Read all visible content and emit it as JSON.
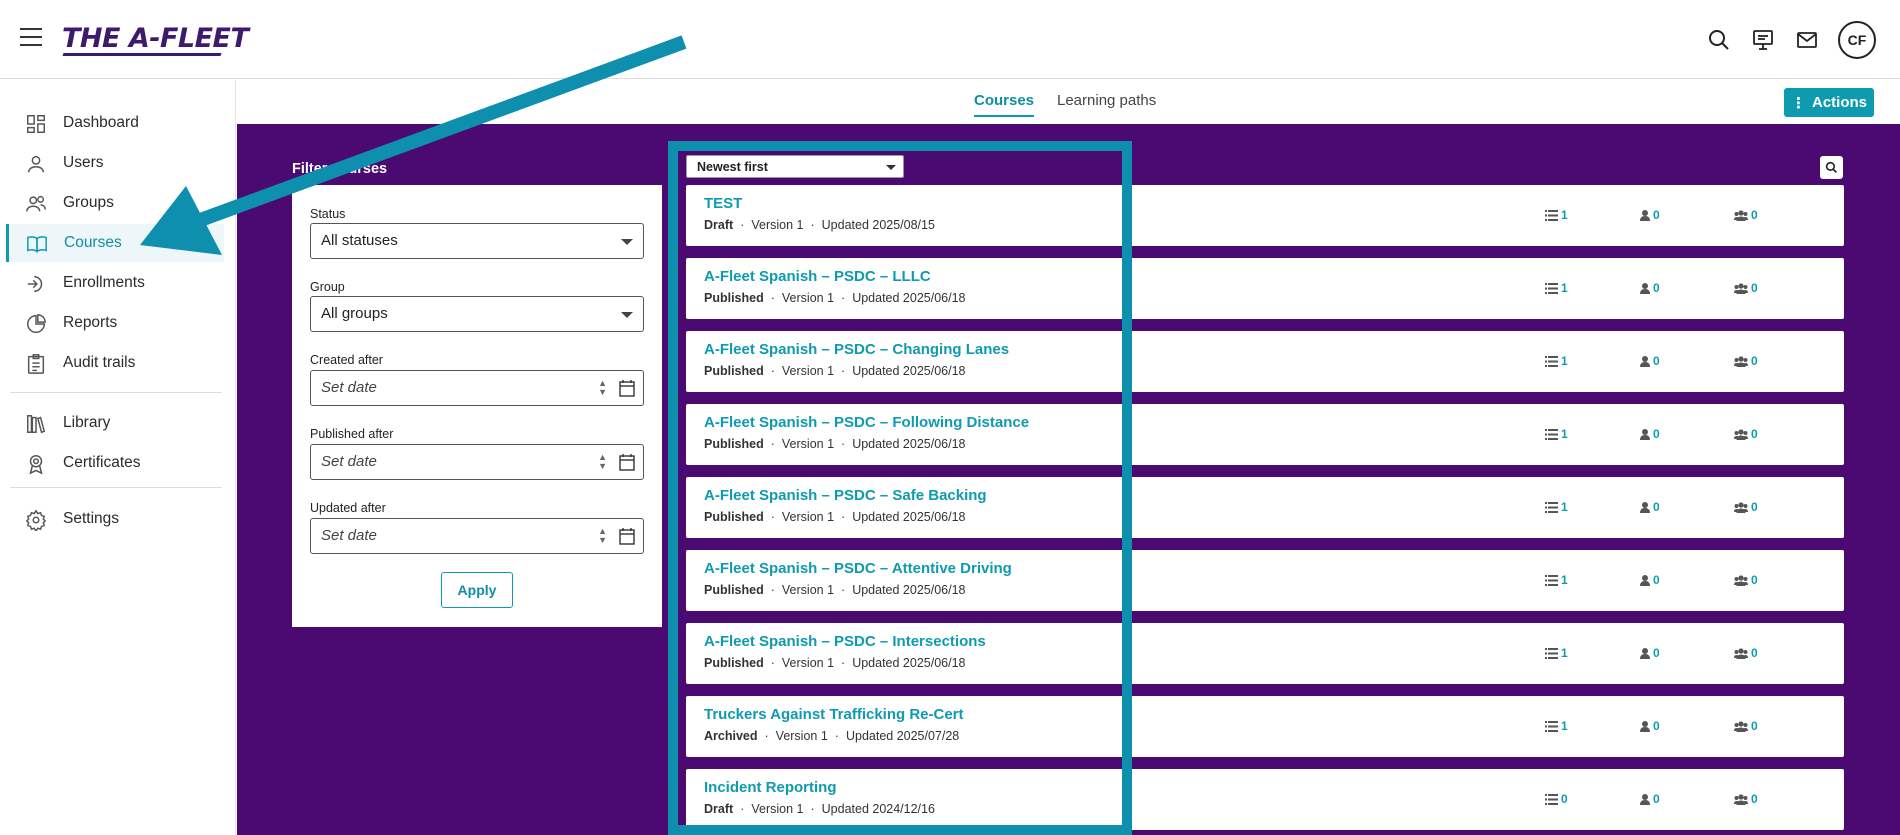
{
  "app": {
    "logo": "THE A-FLEET",
    "avatar_initials": "CF"
  },
  "top_icons": [
    "search-icon",
    "presentation-icon",
    "mail-icon"
  ],
  "sidebar": {
    "items": [
      {
        "label": "Dashboard",
        "icon": "dashboard-icon"
      },
      {
        "label": "Users",
        "icon": "user-icon"
      },
      {
        "label": "Groups",
        "icon": "groups-icon"
      },
      {
        "label": "Courses",
        "icon": "book-icon",
        "active": true
      },
      {
        "label": "Enrollments",
        "icon": "enroll-icon"
      },
      {
        "label": "Reports",
        "icon": "pie-chart-icon"
      },
      {
        "label": "Audit trails",
        "icon": "clipboard-icon"
      },
      {
        "label": "Library",
        "icon": "library-icon"
      },
      {
        "label": "Certificates",
        "icon": "award-icon"
      },
      {
        "label": "Settings",
        "icon": "gear-icon"
      }
    ]
  },
  "tabs": {
    "courses": "Courses",
    "learning_paths": "Learning paths"
  },
  "actions_label": "Actions",
  "filter": {
    "title": "Filter courses",
    "status_label": "Status",
    "status_value": "All statuses",
    "group_label": "Group",
    "group_value": "All groups",
    "created_label": "Created after",
    "published_label": "Published after",
    "updated_label": "Updated after",
    "date_placeholder": "Set date",
    "apply_label": "Apply"
  },
  "sort": {
    "value": "Newest first"
  },
  "courses": [
    {
      "title": "TEST",
      "status": "Draft",
      "version": "Version 1",
      "updated": "Updated 2025/08/15",
      "lessons": "1",
      "users": "0",
      "groups": "0"
    },
    {
      "title": "A-Fleet Spanish – PSDC – LLLC",
      "status": "Published",
      "version": "Version 1",
      "updated": "Updated 2025/06/18",
      "lessons": "1",
      "users": "0",
      "groups": "0"
    },
    {
      "title": "A-Fleet Spanish – PSDC – Changing Lanes",
      "status": "Published",
      "version": "Version 1",
      "updated": "Updated 2025/06/18",
      "lessons": "1",
      "users": "0",
      "groups": "0"
    },
    {
      "title": "A-Fleet Spanish – PSDC – Following Distance",
      "status": "Published",
      "version": "Version 1",
      "updated": "Updated 2025/06/18",
      "lessons": "1",
      "users": "0",
      "groups": "0"
    },
    {
      "title": "A-Fleet Spanish – PSDC – Safe Backing",
      "status": "Published",
      "version": "Version 1",
      "updated": "Updated 2025/06/18",
      "lessons": "1",
      "users": "0",
      "groups": "0"
    },
    {
      "title": "A-Fleet Spanish – PSDC – Attentive Driving",
      "status": "Published",
      "version": "Version 1",
      "updated": "Updated 2025/06/18",
      "lessons": "1",
      "users": "0",
      "groups": "0"
    },
    {
      "title": "A-Fleet Spanish – PSDC – Intersections",
      "status": "Published",
      "version": "Version 1",
      "updated": "Updated 2025/06/18",
      "lessons": "1",
      "users": "0",
      "groups": "0"
    },
    {
      "title": "Truckers Against Trafficking Re-Cert",
      "status": "Archived",
      "version": "Version 1",
      "updated": "Updated 2025/07/28",
      "lessons": "1",
      "users": "0",
      "groups": "0"
    },
    {
      "title": "Incident Reporting",
      "status": "Draft",
      "version": "Version 1",
      "updated": "Updated 2024/12/16",
      "lessons": "0",
      "users": "0",
      "groups": "0"
    }
  ],
  "colors": {
    "accent": "#0e9bb0",
    "brand": "#3d1a6e",
    "background": "#4a0a72",
    "annotation": "#0e8fae"
  }
}
